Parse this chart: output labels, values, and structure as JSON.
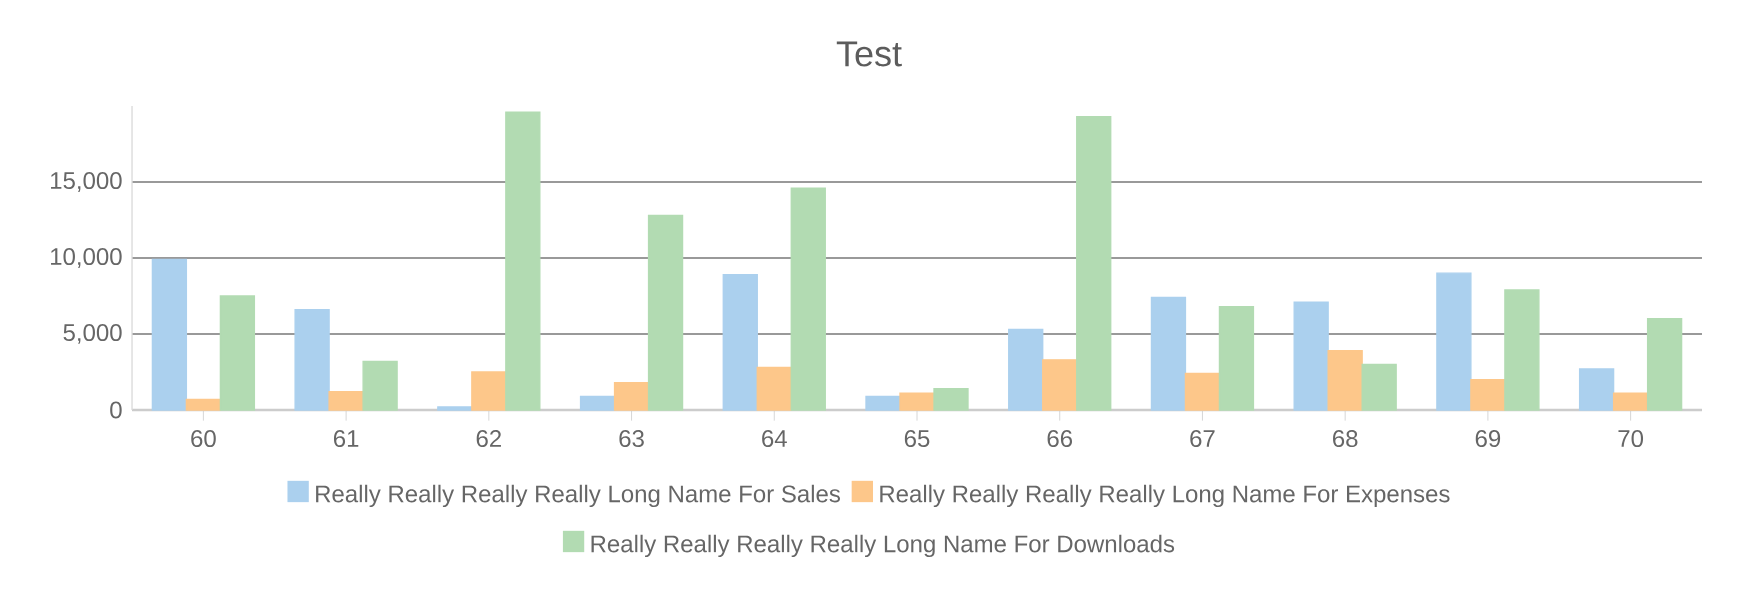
{
  "chart_data": {
    "type": "bar",
    "title": "Test",
    "categories": [
      "60",
      "61",
      "62",
      "63",
      "64",
      "65",
      "66",
      "67",
      "68",
      "69",
      "70"
    ],
    "series": [
      {
        "name": "Really Really Really Really Long Name For Sales",
        "color": "#abd0ee",
        "values": [
          9900,
          6600,
          200,
          900,
          8900,
          900,
          5300,
          7400,
          7100,
          9000,
          2700
        ]
      },
      {
        "name": "Really Really Really Really Long Name For Expenses",
        "color": "#fdc78a",
        "values": [
          700,
          1200,
          2500,
          1800,
          2800,
          1100,
          3300,
          2400,
          3900,
          2000,
          1100
        ]
      },
      {
        "name": "Really Really Really Really Long Name For Downloads",
        "color": "#b2dbb2",
        "values": [
          7500,
          3200,
          19600,
          12800,
          14600,
          1400,
          19300,
          6800,
          3000,
          7900,
          6000
        ]
      }
    ],
    "ylim": [
      0,
      20000
    ],
    "yticks": [
      0,
      {
        "value": 5000,
        "label": "5,000"
      },
      {
        "value": 10000,
        "label": "10,000"
      },
      {
        "value": 15000,
        "label": "15,000"
      }
    ],
    "grid": "y",
    "legend": "bottom"
  }
}
